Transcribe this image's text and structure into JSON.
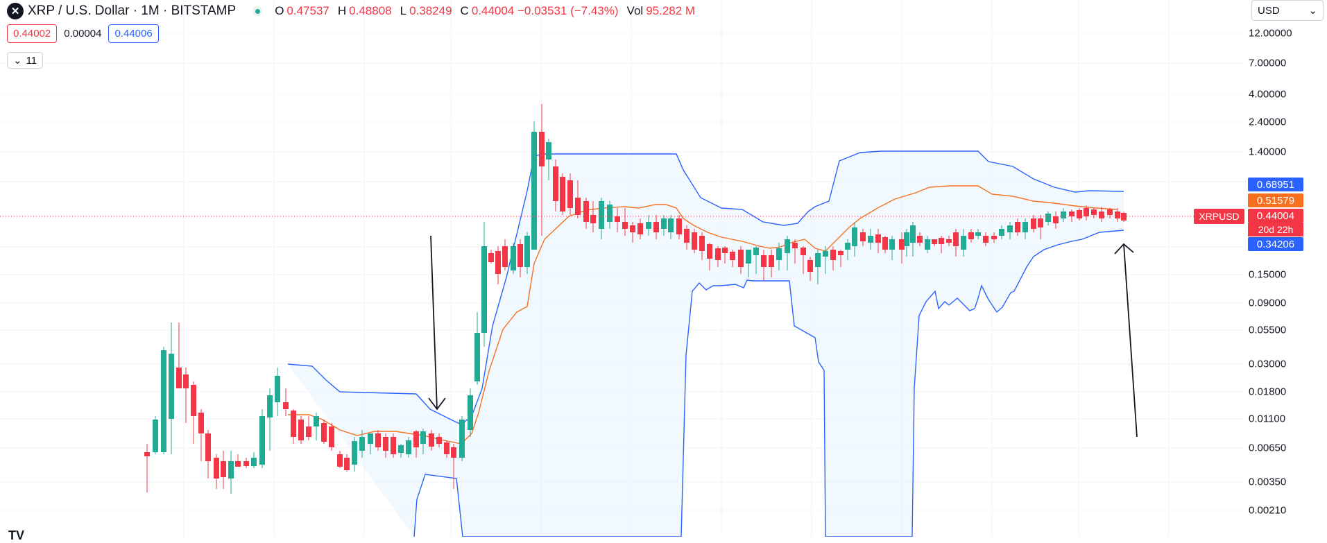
{
  "header": {
    "symbol_title": "XRP / U.S. Dollar · 1M · BITSTAMP",
    "logo_glyph": "✕",
    "ohlc": [
      {
        "key": "O",
        "value": "0.47537"
      },
      {
        "key": "H",
        "value": "0.48808"
      },
      {
        "key": "L",
        "value": "0.38249"
      },
      {
        "key": "C",
        "value": "0.44004 −0.03531 (−7.43%)"
      },
      {
        "key": "Vol",
        "value": "95.282 M"
      }
    ]
  },
  "quote": {
    "bid": "0.44002",
    "spread": "0.00004",
    "ask": "0.44006"
  },
  "indicators_collapse": {
    "count": "11"
  },
  "currency_select": {
    "value": "USD"
  },
  "price_axis": {
    "scale": "log",
    "ticks": [
      "12.00000",
      "7.00000",
      "4.00000",
      "2.40000",
      "1.40000",
      "0.15000",
      "0.09000",
      "0.05500",
      "0.03000",
      "0.01800",
      "0.01100",
      "0.00650",
      "0.00350",
      "0.00210"
    ]
  },
  "price_tags": {
    "upper_band": {
      "value": "0.68951",
      "color": "#2962ff"
    },
    "middle_band": {
      "value": "0.51579",
      "color": "#f7701f"
    },
    "last_price": {
      "value": "0.44004",
      "color": "#f23645"
    },
    "lower_band": {
      "value": "0.34206",
      "color": "#2962ff"
    },
    "symbol": "XRPUSD",
    "countdown": "20d 22h"
  },
  "colors": {
    "up": "#22ab94",
    "down": "#f23645",
    "band": "#2962ff",
    "basis": "#f7701f",
    "fill": "#e3f2fd"
  },
  "footer": {
    "brand": "TV"
  }
}
